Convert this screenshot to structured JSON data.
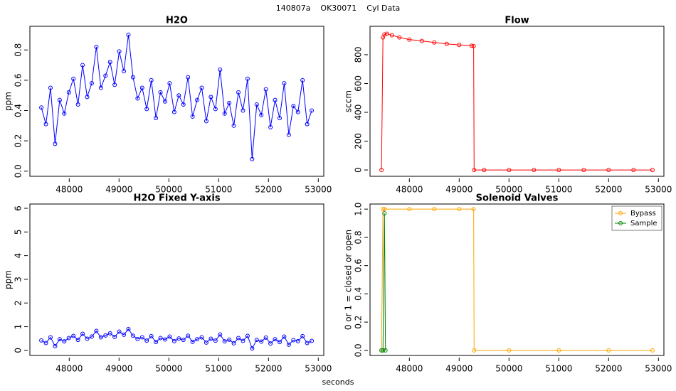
{
  "title": "140807a    OK30071    Cyl Data",
  "x_label": "seconds",
  "chart_data": [
    {
      "type": "line",
      "title": "H2O",
      "y_label": "ppm",
      "xlim": [
        47210,
        53110
      ],
      "xticks": [
        48000,
        49000,
        50000,
        51000,
        52000,
        53000
      ],
      "ylim": [
        -0.034,
        0.956
      ],
      "yticks": [
        {
          "value": 0,
          "label": "0.0"
        },
        0.2,
        0.4,
        0.6,
        0.8
      ],
      "series": [
        {
          "color": "#0000ff",
          "x": [
            47440,
            47532,
            47624,
            47716,
            47808,
            47900,
            47992,
            48084,
            48176,
            48268,
            48360,
            48452,
            48544,
            48636,
            48728,
            48820,
            48912,
            49004,
            49096,
            49188,
            49280,
            49372,
            49464,
            49556,
            49648,
            49740,
            49832,
            49924,
            50016,
            50108,
            50200,
            50292,
            50384,
            50476,
            50568,
            50660,
            50752,
            50844,
            50936,
            51028,
            51120,
            51212,
            51304,
            51396,
            51488,
            51580,
            51672,
            51764,
            51856,
            51948,
            52040,
            52132,
            52224,
            52316,
            52408,
            52500,
            52592,
            52684,
            52776,
            52868
          ],
          "values": [
            0.42,
            0.31,
            0.55,
            0.18,
            0.47,
            0.38,
            0.52,
            0.61,
            0.44,
            0.7,
            0.49,
            0.58,
            0.82,
            0.55,
            0.63,
            0.72,
            0.57,
            0.79,
            0.66,
            0.9,
            0.62,
            0.48,
            0.55,
            0.41,
            0.6,
            0.35,
            0.52,
            0.46,
            0.58,
            0.39,
            0.5,
            0.44,
            0.62,
            0.36,
            0.47,
            0.55,
            0.33,
            0.49,
            0.41,
            0.67,
            0.38,
            0.45,
            0.3,
            0.52,
            0.4,
            0.61,
            0.08,
            0.44,
            0.37,
            0.54,
            0.29,
            0.47,
            0.35,
            0.58,
            0.24,
            0.43,
            0.39,
            0.6,
            0.31,
            0.4
          ]
        }
      ]
    },
    {
      "type": "line",
      "title": "Flow",
      "y_label": "sccm",
      "xlim": [
        47210,
        53110
      ],
      "xticks": [
        48000,
        49000,
        50000,
        51000,
        52000,
        53000
      ],
      "ylim": [
        -44,
        997
      ],
      "yticks": [
        0,
        200,
        400,
        600,
        800
      ],
      "series": [
        {
          "color": "#ff0000",
          "x": [
            47440,
            47470,
            47500,
            47550,
            47650,
            47800,
            48000,
            48250,
            48500,
            48750,
            49000,
            49250,
            49290,
            49300,
            49500,
            50000,
            50500,
            51000,
            51500,
            52000,
            52500,
            52880
          ],
          "values": [
            0,
            920,
            940,
            945,
            935,
            920,
            905,
            895,
            885,
            875,
            868,
            862,
            860,
            0,
            0,
            0,
            0,
            0,
            0,
            0,
            0,
            0
          ]
        }
      ]
    },
    {
      "type": "line",
      "title": "H2O Fixed Y-axis",
      "y_label": "ppm",
      "xlim": [
        47210,
        53110
      ],
      "xticks": [
        48000,
        49000,
        50000,
        51000,
        52000,
        53000
      ],
      "ylim": [
        -0.215,
        6.18
      ],
      "yticks": [
        0,
        1,
        2,
        3,
        4,
        5,
        6
      ],
      "series": [
        {
          "color": "#0000ff",
          "x": [
            47440,
            47532,
            47624,
            47716,
            47808,
            47900,
            47992,
            48084,
            48176,
            48268,
            48360,
            48452,
            48544,
            48636,
            48728,
            48820,
            48912,
            49004,
            49096,
            49188,
            49280,
            49372,
            49464,
            49556,
            49648,
            49740,
            49832,
            49924,
            50016,
            50108,
            50200,
            50292,
            50384,
            50476,
            50568,
            50660,
            50752,
            50844,
            50936,
            51028,
            51120,
            51212,
            51304,
            51396,
            51488,
            51580,
            51672,
            51764,
            51856,
            51948,
            52040,
            52132,
            52224,
            52316,
            52408,
            52500,
            52592,
            52684,
            52776,
            52868
          ],
          "values": [
            0.42,
            0.31,
            0.55,
            0.18,
            0.47,
            0.38,
            0.52,
            0.61,
            0.44,
            0.7,
            0.49,
            0.58,
            0.82,
            0.55,
            0.63,
            0.72,
            0.57,
            0.79,
            0.66,
            0.9,
            0.62,
            0.48,
            0.55,
            0.41,
            0.6,
            0.35,
            0.52,
            0.46,
            0.58,
            0.39,
            0.5,
            0.44,
            0.62,
            0.36,
            0.47,
            0.55,
            0.33,
            0.49,
            0.41,
            0.67,
            0.38,
            0.45,
            0.3,
            0.52,
            0.4,
            0.61,
            0.08,
            0.44,
            0.37,
            0.54,
            0.29,
            0.47,
            0.35,
            0.58,
            0.24,
            0.43,
            0.39,
            0.6,
            0.31,
            0.4
          ]
        }
      ]
    },
    {
      "type": "line",
      "title": "Solenoid Valves",
      "y_label": "0 or 1 = closed or open",
      "xlim": [
        47210,
        53110
      ],
      "xticks": [
        48000,
        49000,
        50000,
        51000,
        52000,
        53000
      ],
      "ylim": [
        -0.036,
        1.036
      ],
      "yticks": [
        {
          "value": 0,
          "label": "0.0"
        },
        0.2,
        0.4,
        0.6,
        0.8,
        {
          "value": 1,
          "label": "1.0"
        }
      ],
      "legend": "topright",
      "series": [
        {
          "name": "Bypass",
          "color": "#ffa500",
          "x": [
            47440,
            47470,
            47500,
            48000,
            48500,
            49000,
            49290,
            49300,
            50000,
            51000,
            52000,
            52880
          ],
          "values": [
            0,
            1,
            1,
            1,
            1,
            1,
            1,
            0,
            0,
            0,
            0,
            0
          ]
        },
        {
          "name": "Sample",
          "color": "#008000",
          "x": [
            47440,
            47470,
            47500,
            47520
          ],
          "values": [
            0,
            0,
            0.97,
            0
          ]
        }
      ]
    }
  ]
}
